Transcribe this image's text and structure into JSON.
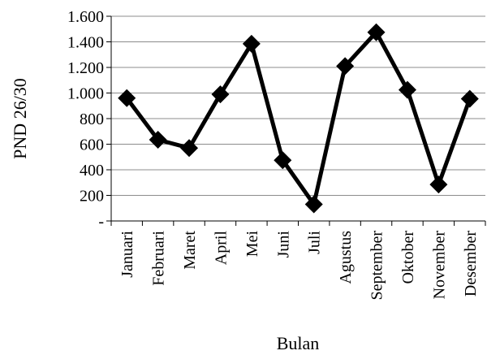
{
  "chart_data": {
    "type": "line",
    "xlabel": "Bulan",
    "ylabel": "PND 26/30",
    "ylim": [
      0,
      1600
    ],
    "y_ticks": [
      {
        "value": 0,
        "label": "-"
      },
      {
        "value": 200,
        "label": "200"
      },
      {
        "value": 400,
        "label": "400"
      },
      {
        "value": 600,
        "label": "600"
      },
      {
        "value": 800,
        "label": "800"
      },
      {
        "value": 1000,
        "label": "1.000"
      },
      {
        "value": 1200,
        "label": "1.200"
      },
      {
        "value": 1400,
        "label": "1.400"
      },
      {
        "value": 1600,
        "label": "1.600"
      }
    ],
    "categories": [
      "Januari",
      "Februari",
      "Maret",
      "April",
      "Mei",
      "Juni",
      "Juli",
      "Agustus",
      "September",
      "Oktober",
      "November",
      "Desember"
    ],
    "series": [
      {
        "values": [
          960,
          635,
          570,
          990,
          1385,
          475,
          130,
          1210,
          1475,
          1025,
          285,
          955
        ],
        "color": "#000000",
        "marker": "diamond"
      }
    ],
    "grid": true,
    "legend": "none"
  }
}
